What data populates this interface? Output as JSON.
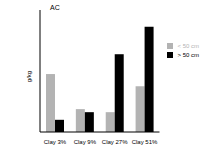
{
  "chart_data": {
    "type": "bar",
    "title": "AC",
    "ylabel": "g/kg",
    "categories": [
      "Clay 3%",
      "Clay 9%",
      "Clay 27%",
      "Clay 51%"
    ],
    "series": [
      {
        "name": "< 50 cm",
        "color": "#b3b3b3",
        "values": [
          3.8,
          1.5,
          1.3,
          3.0
        ]
      },
      {
        "name": "> 50 cm",
        "color": "#000000",
        "values": [
          0.8,
          1.3,
          5.1,
          6.9
        ]
      }
    ],
    "ylim": [
      0,
      8
    ],
    "tick_labels": "x",
    "legend": "upper right"
  }
}
